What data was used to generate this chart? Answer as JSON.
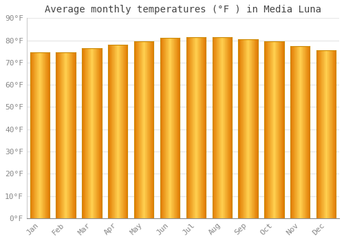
{
  "title": "Average monthly temperatures (°F ) in Media Luna",
  "months": [
    "Jan",
    "Feb",
    "Mar",
    "Apr",
    "May",
    "Jun",
    "Jul",
    "Aug",
    "Sep",
    "Oct",
    "Nov",
    "Dec"
  ],
  "values": [
    74.5,
    74.5,
    76.5,
    78.0,
    79.5,
    81.0,
    81.5,
    81.5,
    80.5,
    79.5,
    77.5,
    75.5
  ],
  "bar_color_center": "#FFD050",
  "bar_color_edge": "#E07800",
  "bar_edge_color": "#CC8800",
  "background_color": "#ffffff",
  "plot_bg_color": "#ffffff",
  "grid_color": "#e8e8e8",
  "ylim": [
    0,
    90
  ],
  "yticks": [
    0,
    10,
    20,
    30,
    40,
    50,
    60,
    70,
    80,
    90
  ],
  "ytick_labels": [
    "0°F",
    "10°F",
    "20°F",
    "30°F",
    "40°F",
    "50°F",
    "60°F",
    "70°F",
    "80°F",
    "90°F"
  ],
  "title_fontsize": 10,
  "tick_fontsize": 8,
  "font_family": "monospace",
  "title_color": "#444444",
  "tick_color": "#888888"
}
